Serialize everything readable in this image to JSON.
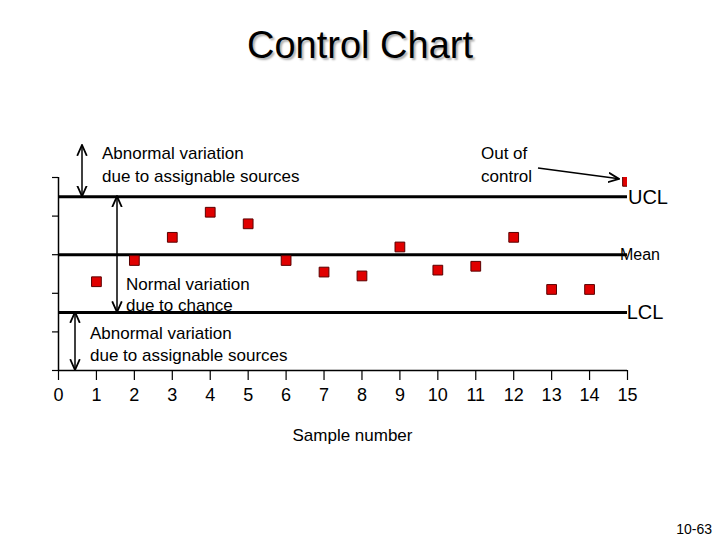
{
  "chart_data": {
    "type": "scatter",
    "title": "Control Chart",
    "x_label": "Sample number",
    "x": [
      1,
      2,
      3,
      4,
      5,
      6,
      7,
      8,
      9,
      10,
      11,
      12,
      13,
      14,
      15
    ],
    "values": [
      2.3,
      2.85,
      3.45,
      4.1,
      3.8,
      2.85,
      2.55,
      2.45,
      3.2,
      2.6,
      2.7,
      3.45,
      2.1,
      2.1,
      4.9
    ],
    "color": "#e00000",
    "marker": "square",
    "xlim": [
      0,
      15
    ],
    "xticks": [
      0,
      1,
      2,
      3,
      4,
      5,
      6,
      7,
      8,
      9,
      10,
      11,
      12,
      13,
      14,
      15
    ],
    "ylim": [
      0,
      5
    ],
    "yticks": [
      0,
      1,
      2,
      3,
      4,
      5
    ],
    "tick_labels": "x",
    "control_limits": [
      {
        "name": "UCL",
        "value": 4.5
      },
      {
        "name": "Mean",
        "value": 3
      },
      {
        "name": "LCL",
        "value": 1.5
      }
    ],
    "annotations": [
      {
        "text": [
          "Abnormal variation",
          "due to assignable sources"
        ]
      },
      {
        "text": [
          "Out of",
          "control"
        ]
      },
      {
        "text": [
          "Normal variation",
          "due to chance"
        ]
      },
      {
        "text": [
          "Abnormal variation",
          "due to assignable sources"
        ]
      }
    ],
    "footer": "10-63"
  }
}
